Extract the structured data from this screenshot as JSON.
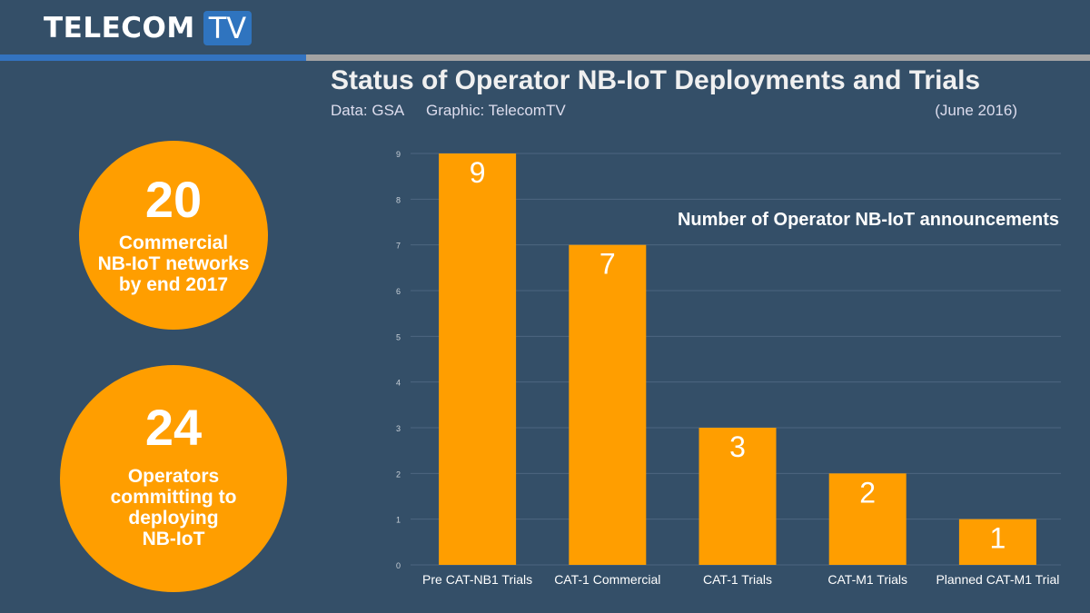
{
  "header": {
    "logo_text": "TELECOM",
    "logo_tv": "TV",
    "title": "Status of Operator NB-IoT Deployments and Trials",
    "source": "Data: GSA",
    "graphic": "Graphic: TelecomTV",
    "date": "(June 2016)"
  },
  "callouts": [
    {
      "number": "20",
      "lines": [
        "Commercial",
        "NB-IoT networks",
        "by end 2017"
      ]
    },
    {
      "number": "24",
      "lines": [
        "Operators",
        "committing to",
        "deploying",
        "NB-IoT"
      ]
    }
  ],
  "colors": {
    "background": "#344f68",
    "bar": "#ff9e00",
    "accent_blue": "#3373c0"
  },
  "chart_data": {
    "type": "bar",
    "title": "Number of Operator NB-IoT announcements",
    "categories": [
      "Pre CAT-NB1 Trials",
      "CAT-1 Commercial",
      "CAT-1 Trials",
      "CAT-M1 Trials",
      "Planned CAT-M1 Trial"
    ],
    "values": [
      9,
      7,
      3,
      2,
      1
    ],
    "ylim": [
      0,
      9
    ],
    "yticks": [
      0,
      1,
      2,
      3,
      4,
      5,
      6,
      7,
      8,
      9
    ],
    "grid": true,
    "data_labels": true
  }
}
